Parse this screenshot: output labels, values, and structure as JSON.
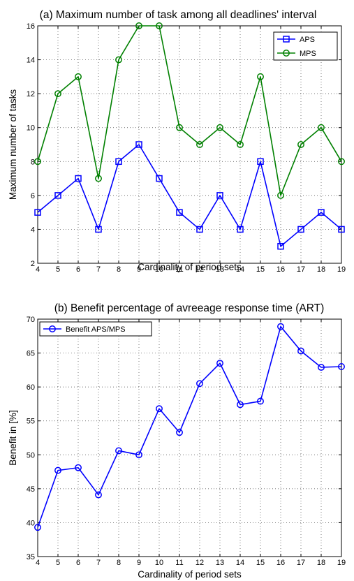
{
  "chart_data": [
    {
      "type": "line",
      "title": "(a) Maximum number of task among all deadlines' interval",
      "xlabel": "Cardinality of period sets",
      "ylabel": "Maximum number of tasks",
      "xlim": [
        4,
        19
      ],
      "ylim": [
        2,
        16
      ],
      "xticks": [
        4,
        5,
        6,
        7,
        8,
        9,
        10,
        11,
        12,
        13,
        14,
        15,
        16,
        17,
        18,
        19
      ],
      "yticks": [
        2,
        4,
        6,
        8,
        10,
        12,
        14,
        16
      ],
      "grid": true,
      "legend_position": "top-right",
      "series": [
        {
          "name": "APS",
          "marker": "square",
          "color": "#0000ff",
          "x": [
            4,
            5,
            6,
            7,
            8,
            9,
            10,
            11,
            12,
            13,
            14,
            15,
            16,
            17,
            18,
            19
          ],
          "values": [
            5,
            6,
            7,
            4,
            8,
            9,
            7,
            5,
            4,
            6,
            4,
            8,
            3,
            4,
            5,
            4
          ]
        },
        {
          "name": "MPS",
          "marker": "circle",
          "color": "#008000",
          "x": [
            4,
            5,
            6,
            7,
            8,
            9,
            10,
            11,
            12,
            13,
            14,
            15,
            16,
            17,
            18,
            19
          ],
          "values": [
            8,
            12,
            13,
            7,
            14,
            16,
            16,
            10,
            9,
            10,
            9,
            13,
            6,
            9,
            10,
            8
          ]
        }
      ]
    },
    {
      "type": "line",
      "title": "(b) Benefit percentage of avreeage response time (ART)",
      "xlabel": "Cardinality of period sets",
      "ylabel": "Benefit in [%]",
      "xlim": [
        4,
        19
      ],
      "ylim": [
        35,
        70
      ],
      "xticks": [
        4,
        5,
        6,
        7,
        8,
        9,
        10,
        11,
        12,
        13,
        14,
        15,
        16,
        17,
        18,
        19
      ],
      "yticks": [
        35,
        40,
        45,
        50,
        55,
        60,
        65,
        70
      ],
      "grid": true,
      "legend_position": "top-left",
      "series": [
        {
          "name": "Benefit APS/MPS",
          "marker": "circle",
          "color": "#0000ff",
          "x": [
            4,
            5,
            6,
            7,
            8,
            9,
            10,
            11,
            12,
            13,
            14,
            15,
            16,
            17,
            18,
            19
          ],
          "values": [
            39.3,
            47.7,
            48.1,
            44.1,
            50.6,
            50.0,
            56.8,
            53.3,
            60.5,
            63.5,
            57.4,
            57.9,
            68.9,
            65.3,
            62.9,
            63.0
          ]
        }
      ]
    }
  ]
}
